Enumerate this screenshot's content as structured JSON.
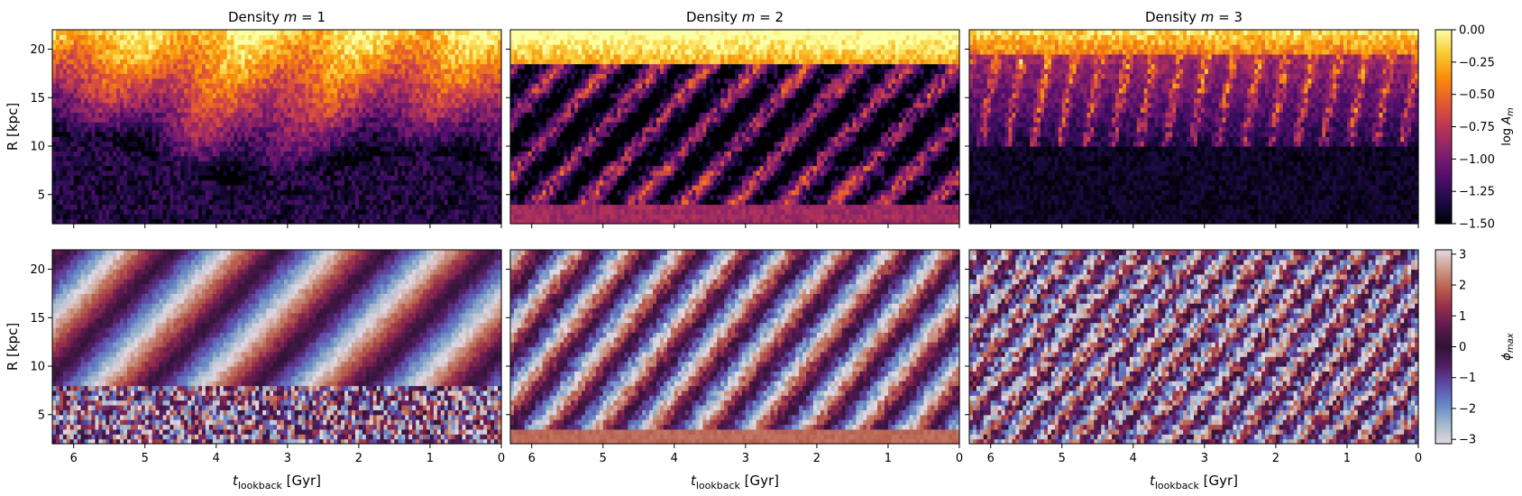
{
  "chart_data": {
    "type": "heatmap",
    "layout": "2 rows x 3 columns of heatmaps with a colorbar per row",
    "columns": [
      {
        "title_prefix": "Density ",
        "title_math": "m",
        "title_suffix": " = 1",
        "m": 1
      },
      {
        "title_prefix": "Density ",
        "title_math": "m",
        "title_suffix": " = 2",
        "m": 2
      },
      {
        "title_prefix": "Density ",
        "title_math": "m",
        "title_suffix": " = 3",
        "m": 3
      }
    ],
    "xaxis": {
      "label_main": "t",
      "label_sub": "lookback",
      "label_unit": " [Gyr]",
      "reversed": true,
      "xlim": [
        6.3,
        0
      ],
      "ticks": [
        6,
        5,
        4,
        3,
        2,
        1,
        0
      ],
      "tick_labels": [
        "6",
        "5",
        "4",
        "3",
        "2",
        "1",
        "0"
      ]
    },
    "yaxis": {
      "label": "R [kpc]",
      "ylim": [
        2,
        22
      ],
      "ticks": [
        5,
        10,
        15,
        20
      ],
      "tick_labels": [
        "5",
        "10",
        "15",
        "20"
      ]
    },
    "rows": [
      {
        "quantity": "amplitude",
        "colormap": "inferno",
        "colorbar": {
          "label_prefix": "log ",
          "label_math": "A",
          "label_sub": "m",
          "range": [
            -1.5,
            0.0
          ],
          "ticks": [
            0.0,
            -0.25,
            -0.5,
            -0.75,
            -1.0,
            -1.25,
            -1.5
          ],
          "tick_labels": [
            "0.00",
            "−0.25",
            "−0.50",
            "−0.75",
            "−1.00",
            "−1.25",
            "−1.50"
          ]
        }
      },
      {
        "quantity": "phase",
        "colormap": "twilight",
        "colorbar": {
          "label_math": "ϕ",
          "label_sub": "max",
          "range": [
            -3.14,
            3.14
          ],
          "ticks": [
            3,
            2,
            1,
            0,
            -1,
            -2,
            -3
          ],
          "tick_labels": [
            "3",
            "2",
            "1",
            "0",
            "−1",
            "−2",
            "−3"
          ]
        }
      }
    ],
    "grid": false,
    "grid_resolution": {
      "time_bins": 126,
      "radius_bins": 40
    }
  }
}
